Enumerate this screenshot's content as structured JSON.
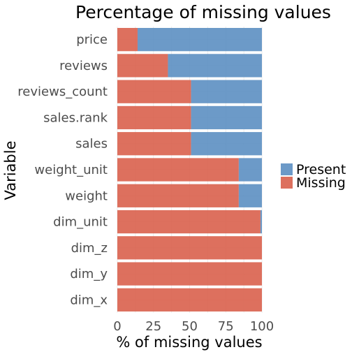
{
  "chart_data": {
    "type": "bar",
    "orientation": "horizontal",
    "stacked": true,
    "title": "Percentage of missing values",
    "xlabel": "% of missing values",
    "ylabel": "Variable",
    "xlim": [
      0,
      100
    ],
    "xticks": [
      "0",
      "25",
      "50",
      "75",
      "100"
    ],
    "xtick_values": [
      0,
      25,
      50,
      75,
      100
    ],
    "grid": true,
    "legend": "right",
    "categories": [
      "price",
      "reviews",
      "reviews_count",
      "sales.rank",
      "sales",
      "weight_unit",
      "weight",
      "dim_unit",
      "dim_z",
      "dim_y",
      "dim_x"
    ],
    "series": [
      {
        "name": "Missing",
        "color": "#d9604c",
        "values": [
          14,
          35,
          51,
          51,
          51,
          84,
          84,
          99,
          100,
          100,
          100
        ]
      },
      {
        "name": "Present",
        "color": "#5c8fc2",
        "values": [
          86,
          65,
          49,
          49,
          49,
          16,
          16,
          1,
          0,
          0,
          0
        ]
      }
    ],
    "legend_order": [
      "Present",
      "Missing"
    ]
  }
}
